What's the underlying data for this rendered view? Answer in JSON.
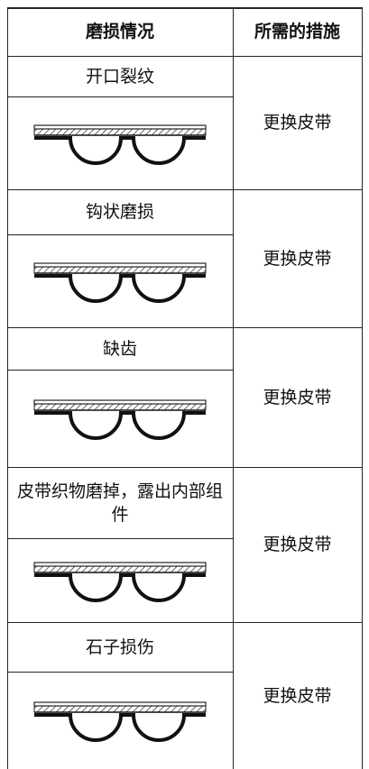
{
  "table": {
    "header": [
      "磨损情况",
      "所需的措施"
    ],
    "rows": [
      {
        "condition": "开口裂纹",
        "action": "更换皮带"
      },
      {
        "condition": "钩状磨损",
        "action": "更换皮带"
      },
      {
        "condition": "缺齿",
        "action": "更换皮带"
      },
      {
        "condition": "皮带织物磨掉，露出内部组件",
        "action": "更换皮带"
      },
      {
        "condition": "石子损伤",
        "action": "更换皮带"
      }
    ]
  }
}
